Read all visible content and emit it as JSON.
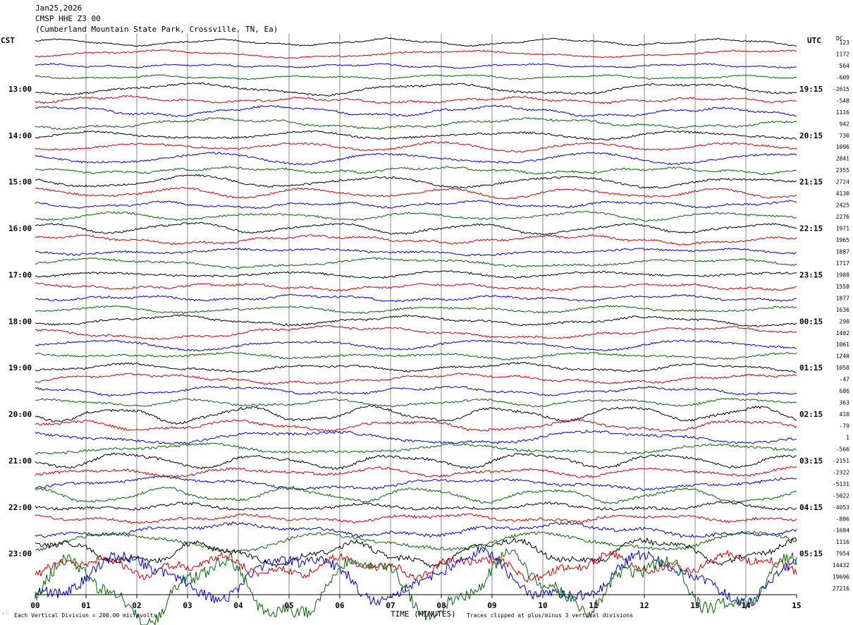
{
  "header": {
    "date": "Jan25,2026",
    "station": "CMSP HHE Z3 00",
    "location": "(Cumberland Mountain State Park, Crossville, TN, Ea)"
  },
  "left_tz": "CST",
  "right_tz": "UTC",
  "dc_label": "DC",
  "footer": {
    "left_mark": "′′",
    "division": "Each Vertical Division =  200.00 microvolts",
    "xlabel": "TIME (MINUTES)",
    "clip_note": "Traces clipped at plus/minus 3 vertical divisions"
  },
  "chart_data": {
    "type": "line",
    "title": "CMSP HHE Z3 00",
    "xlabel": "TIME (MINUTES)",
    "ylabel": "",
    "xlim": [
      0,
      15
    ],
    "x_ticks": [
      "00",
      "01",
      "02",
      "03",
      "04",
      "05",
      "06",
      "07",
      "08",
      "09",
      "10",
      "11",
      "12",
      "13",
      "14",
      "15"
    ],
    "left_hour_labels": [
      "13:00",
      "14:00",
      "15:00",
      "16:00",
      "17:00",
      "18:00",
      "19:00",
      "20:00",
      "21:00",
      "22:00",
      "23:00"
    ],
    "right_hour_labels": [
      "19:15",
      "20:15",
      "21:15",
      "22:15",
      "23:15",
      "00:15",
      "01:15",
      "02:15",
      "03:15",
      "04:15",
      "05:15"
    ],
    "trace_colors": [
      "#000000",
      "#cc0000",
      "#0000cc",
      "#006600"
    ],
    "grid": "vertical lines at each minute",
    "dc_offsets": [
      "123",
      "1172",
      "564",
      "-609",
      "-2615",
      "-548",
      "1116",
      "942",
      "730",
      "1096",
      "2841",
      "2355",
      "2724",
      "4130",
      "2425",
      "2276",
      "1971",
      "1965",
      "1887",
      "1717",
      "1988",
      "1558",
      "1877",
      "1636",
      "290",
      "1402",
      "1061",
      "1240",
      "1058",
      "-47",
      "686",
      "363",
      "410",
      "-79",
      "1",
      "-566",
      "-2151",
      "-2322",
      "-5131",
      "-5022",
      "-4053",
      "-886",
      "-1684",
      "1116",
      "7954",
      "14432",
      "19696",
      "27216"
    ],
    "trace_amplitude": [
      2,
      2,
      2,
      2,
      3,
      3,
      3,
      3,
      3,
      3,
      3,
      3,
      3,
      3,
      3,
      3,
      3,
      3,
      3,
      3,
      3,
      3,
      3,
      3,
      3,
      3,
      3,
      3,
      3,
      3,
      3,
      3,
      4,
      4,
      4,
      4,
      4,
      4,
      4,
      4,
      4,
      4,
      5,
      5,
      8,
      12,
      16,
      20
    ]
  }
}
